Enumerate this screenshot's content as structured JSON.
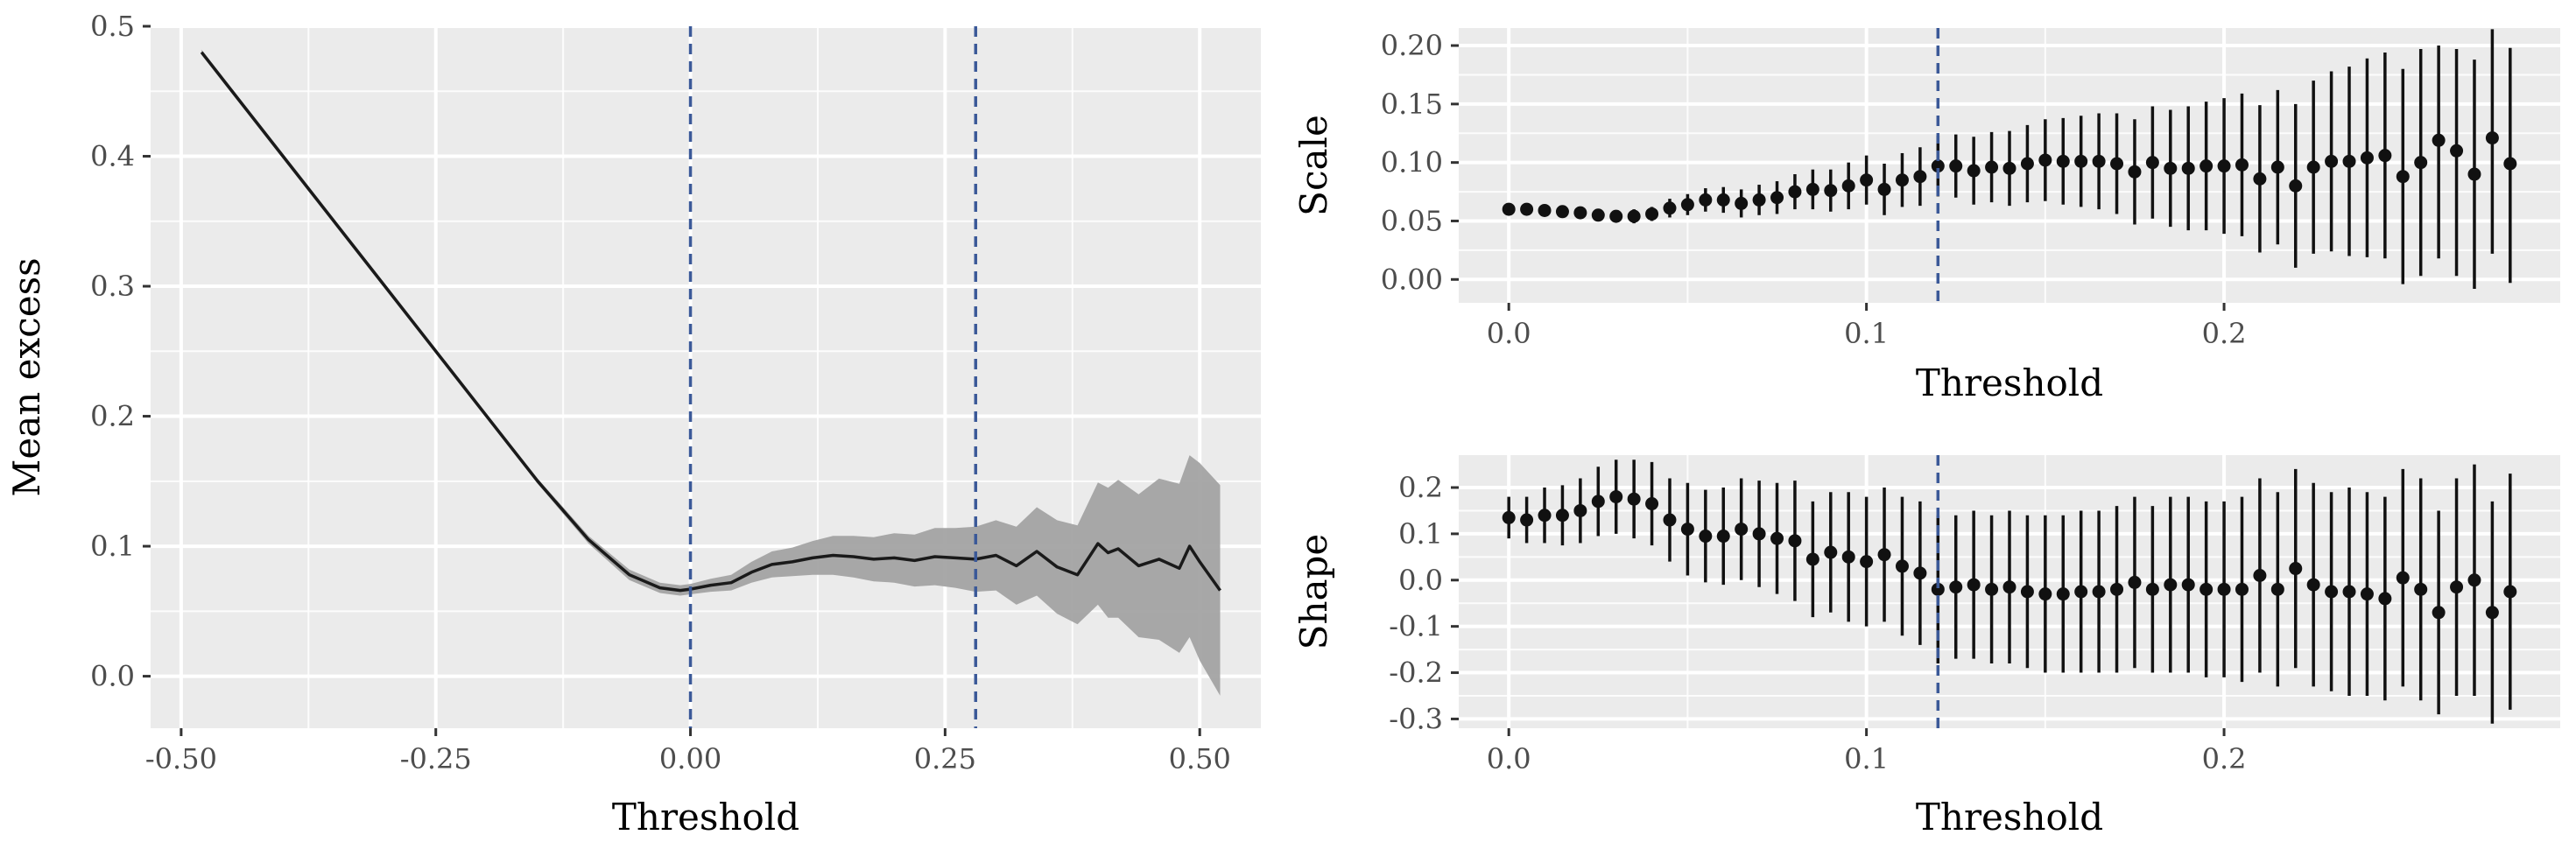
{
  "colors": {
    "panel_bg": "#ebebeb",
    "grid_major": "#ffffff",
    "vline": "#3b5998",
    "line": "#1a1a1a",
    "ribbon": "#a3a3a3",
    "point": "#111111",
    "tick_text": "#4d4d4d"
  },
  "chart_data": [
    {
      "id": "mean-excess",
      "type": "line",
      "xlabel": "Threshold",
      "ylabel": "Mean excess",
      "xlim": [
        -0.53,
        0.56
      ],
      "ylim": [
        -0.04,
        0.5
      ],
      "xticks": [
        -0.5,
        -0.25,
        0.0,
        0.25,
        0.5
      ],
      "xtick_labels": [
        "-0.50",
        "-0.25",
        "0.00",
        "0.25",
        "0.50"
      ],
      "yticks": [
        0.0,
        0.1,
        0.2,
        0.3,
        0.4,
        0.5
      ],
      "ytick_labels": [
        "0.0",
        "0.1",
        "0.2",
        "0.3",
        "0.4",
        "0.5"
      ],
      "vlines": [
        0.0,
        0.28
      ],
      "series": [
        {
          "name": "mean excess",
          "x": [
            -0.48,
            -0.4,
            -0.3,
            -0.2,
            -0.15,
            -0.1,
            -0.06,
            -0.03,
            -0.01,
            0.0,
            0.02,
            0.04,
            0.06,
            0.08,
            0.1,
            0.12,
            0.14,
            0.16,
            0.18,
            0.2,
            0.22,
            0.24,
            0.26,
            0.28,
            0.3,
            0.32,
            0.34,
            0.36,
            0.38,
            0.4,
            0.41,
            0.42,
            0.44,
            0.46,
            0.48,
            0.49,
            0.5,
            0.52
          ],
          "y": [
            0.48,
            0.4,
            0.3,
            0.2,
            0.15,
            0.105,
            0.078,
            0.068,
            0.066,
            0.067,
            0.07,
            0.072,
            0.08,
            0.086,
            0.088,
            0.091,
            0.093,
            0.092,
            0.09,
            0.091,
            0.089,
            0.092,
            0.091,
            0.09,
            0.093,
            0.085,
            0.096,
            0.084,
            0.078,
            0.102,
            0.095,
            0.098,
            0.085,
            0.09,
            0.083,
            0.1,
            0.088,
            0.066
          ],
          "lower": [
            0.478,
            0.398,
            0.298,
            0.198,
            0.148,
            0.102,
            0.074,
            0.064,
            0.062,
            0.063,
            0.065,
            0.066,
            0.072,
            0.076,
            0.077,
            0.078,
            0.078,
            0.076,
            0.073,
            0.072,
            0.069,
            0.07,
            0.068,
            0.065,
            0.066,
            0.055,
            0.062,
            0.048,
            0.04,
            0.055,
            0.045,
            0.045,
            0.03,
            0.028,
            0.018,
            0.03,
            0.012,
            -0.015
          ],
          "upper": [
            0.482,
            0.402,
            0.302,
            0.202,
            0.152,
            0.108,
            0.082,
            0.072,
            0.07,
            0.071,
            0.075,
            0.078,
            0.088,
            0.096,
            0.099,
            0.104,
            0.108,
            0.108,
            0.107,
            0.11,
            0.109,
            0.114,
            0.114,
            0.115,
            0.12,
            0.115,
            0.13,
            0.12,
            0.116,
            0.149,
            0.145,
            0.151,
            0.14,
            0.152,
            0.148,
            0.17,
            0.164,
            0.147
          ]
        }
      ]
    },
    {
      "id": "scale",
      "type": "scatter",
      "xlabel": "Threshold",
      "ylabel": "Scale",
      "xlim": [
        -0.014,
        0.294
      ],
      "ylim": [
        -0.02,
        0.215
      ],
      "xticks": [
        0.0,
        0.1,
        0.2
      ],
      "xtick_labels": [
        "0.0",
        "0.1",
        "0.2"
      ],
      "yticks": [
        0.0,
        0.05,
        0.1,
        0.15,
        0.2
      ],
      "ytick_labels": [
        "0.00",
        "0.05",
        "0.10",
        "0.15",
        "0.20"
      ],
      "vlines": [
        0.12
      ],
      "x": [
        0.0,
        0.005,
        0.01,
        0.015,
        0.02,
        0.025,
        0.03,
        0.035,
        0.04,
        0.045,
        0.05,
        0.055,
        0.06,
        0.065,
        0.07,
        0.075,
        0.08,
        0.085,
        0.09,
        0.095,
        0.1,
        0.105,
        0.11,
        0.115,
        0.12,
        0.125,
        0.13,
        0.135,
        0.14,
        0.145,
        0.15,
        0.155,
        0.16,
        0.165,
        0.17,
        0.175,
        0.18,
        0.185,
        0.19,
        0.195,
        0.2,
        0.205,
        0.21,
        0.215,
        0.22,
        0.225,
        0.23,
        0.235,
        0.24,
        0.245,
        0.25,
        0.255,
        0.26,
        0.265,
        0.27,
        0.275,
        0.28
      ],
      "y": [
        0.06,
        0.06,
        0.059,
        0.058,
        0.057,
        0.055,
        0.054,
        0.054,
        0.056,
        0.061,
        0.064,
        0.068,
        0.068,
        0.065,
        0.068,
        0.07,
        0.075,
        0.077,
        0.076,
        0.08,
        0.085,
        0.077,
        0.085,
        0.088,
        0.097,
        0.097,
        0.093,
        0.096,
        0.095,
        0.099,
        0.102,
        0.101,
        0.101,
        0.101,
        0.099,
        0.092,
        0.1,
        0.095,
        0.095,
        0.097,
        0.097,
        0.098,
        0.086,
        0.096,
        0.08,
        0.096,
        0.101,
        0.101,
        0.104,
        0.106,
        0.088,
        0.1,
        0.119,
        0.11,
        0.09,
        0.121,
        0.099
      ],
      "lower": [
        0.055,
        0.055,
        0.054,
        0.053,
        0.052,
        0.05,
        0.049,
        0.048,
        0.05,
        0.053,
        0.055,
        0.058,
        0.057,
        0.053,
        0.055,
        0.056,
        0.06,
        0.06,
        0.058,
        0.06,
        0.064,
        0.055,
        0.062,
        0.063,
        0.071,
        0.07,
        0.064,
        0.066,
        0.063,
        0.066,
        0.067,
        0.064,
        0.062,
        0.06,
        0.056,
        0.047,
        0.052,
        0.045,
        0.042,
        0.042,
        0.039,
        0.037,
        0.023,
        0.03,
        0.01,
        0.022,
        0.024,
        0.02,
        0.019,
        0.018,
        -0.004,
        0.003,
        0.018,
        0.003,
        -0.008,
        0.022,
        -0.003
      ],
      "upper": [
        0.065,
        0.065,
        0.064,
        0.063,
        0.062,
        0.06,
        0.059,
        0.06,
        0.062,
        0.069,
        0.073,
        0.078,
        0.079,
        0.077,
        0.081,
        0.084,
        0.09,
        0.094,
        0.094,
        0.1,
        0.106,
        0.099,
        0.108,
        0.113,
        0.123,
        0.124,
        0.122,
        0.126,
        0.127,
        0.132,
        0.137,
        0.138,
        0.14,
        0.142,
        0.142,
        0.137,
        0.148,
        0.145,
        0.148,
        0.152,
        0.155,
        0.159,
        0.149,
        0.162,
        0.15,
        0.17,
        0.178,
        0.182,
        0.189,
        0.194,
        0.18,
        0.197,
        0.2,
        0.197,
        0.188,
        0.214,
        0.198
      ]
    },
    {
      "id": "shape",
      "type": "scatter",
      "xlabel": "Threshold",
      "ylabel": "Shape",
      "xlim": [
        -0.014,
        0.294
      ],
      "ylim": [
        -0.32,
        0.27
      ],
      "xticks": [
        0.0,
        0.1,
        0.2
      ],
      "xtick_labels": [
        "0.0",
        "0.1",
        "0.2"
      ],
      "yticks": [
        -0.3,
        -0.2,
        -0.1,
        0.0,
        0.1,
        0.2
      ],
      "ytick_labels": [
        "-0.3",
        "-0.2",
        "-0.1",
        "0.0",
        "0.1",
        "0.2"
      ],
      "vlines": [
        0.12
      ],
      "x": [
        0.0,
        0.005,
        0.01,
        0.015,
        0.02,
        0.025,
        0.03,
        0.035,
        0.04,
        0.045,
        0.05,
        0.055,
        0.06,
        0.065,
        0.07,
        0.075,
        0.08,
        0.085,
        0.09,
        0.095,
        0.1,
        0.105,
        0.11,
        0.115,
        0.12,
        0.125,
        0.13,
        0.135,
        0.14,
        0.145,
        0.15,
        0.155,
        0.16,
        0.165,
        0.17,
        0.175,
        0.18,
        0.185,
        0.19,
        0.195,
        0.2,
        0.205,
        0.21,
        0.215,
        0.22,
        0.225,
        0.23,
        0.235,
        0.24,
        0.245,
        0.25,
        0.255,
        0.26,
        0.265,
        0.27,
        0.275,
        0.28
      ],
      "y": [
        0.135,
        0.13,
        0.14,
        0.14,
        0.15,
        0.17,
        0.18,
        0.175,
        0.165,
        0.13,
        0.11,
        0.095,
        0.095,
        0.11,
        0.1,
        0.09,
        0.085,
        0.045,
        0.06,
        0.05,
        0.04,
        0.055,
        0.03,
        0.015,
        -0.02,
        -0.015,
        -0.01,
        -0.02,
        -0.015,
        -0.025,
        -0.03,
        -0.03,
        -0.025,
        -0.025,
        -0.02,
        -0.005,
        -0.02,
        -0.01,
        -0.01,
        -0.02,
        -0.02,
        -0.02,
        0.01,
        -0.02,
        0.025,
        -0.01,
        -0.025,
        -0.025,
        -0.03,
        -0.04,
        0.005,
        -0.02,
        -0.07,
        -0.015,
        0.0,
        -0.07,
        -0.025
      ],
      "lower": [
        0.09,
        0.08,
        0.08,
        0.075,
        0.08,
        0.095,
        0.1,
        0.09,
        0.075,
        0.04,
        0.01,
        -0.005,
        -0.01,
        0.0,
        -0.015,
        -0.03,
        -0.045,
        -0.08,
        -0.07,
        -0.09,
        -0.1,
        -0.09,
        -0.12,
        -0.14,
        -0.18,
        -0.17,
        -0.17,
        -0.18,
        -0.18,
        -0.19,
        -0.2,
        -0.2,
        -0.2,
        -0.2,
        -0.2,
        -0.19,
        -0.2,
        -0.2,
        -0.2,
        -0.21,
        -0.21,
        -0.22,
        -0.2,
        -0.23,
        -0.19,
        -0.23,
        -0.24,
        -0.25,
        -0.25,
        -0.26,
        -0.23,
        -0.26,
        -0.29,
        -0.25,
        -0.25,
        -0.31,
        -0.28
      ],
      "upper": [
        0.18,
        0.18,
        0.2,
        0.205,
        0.22,
        0.245,
        0.26,
        0.26,
        0.255,
        0.22,
        0.21,
        0.195,
        0.2,
        0.22,
        0.215,
        0.21,
        0.215,
        0.17,
        0.19,
        0.19,
        0.18,
        0.2,
        0.18,
        0.17,
        0.14,
        0.14,
        0.15,
        0.14,
        0.15,
        0.14,
        0.14,
        0.14,
        0.15,
        0.15,
        0.16,
        0.18,
        0.16,
        0.18,
        0.18,
        0.17,
        0.17,
        0.18,
        0.22,
        0.19,
        0.24,
        0.21,
        0.19,
        0.2,
        0.19,
        0.18,
        0.24,
        0.22,
        0.15,
        0.22,
        0.25,
        0.17,
        0.23
      ]
    }
  ]
}
